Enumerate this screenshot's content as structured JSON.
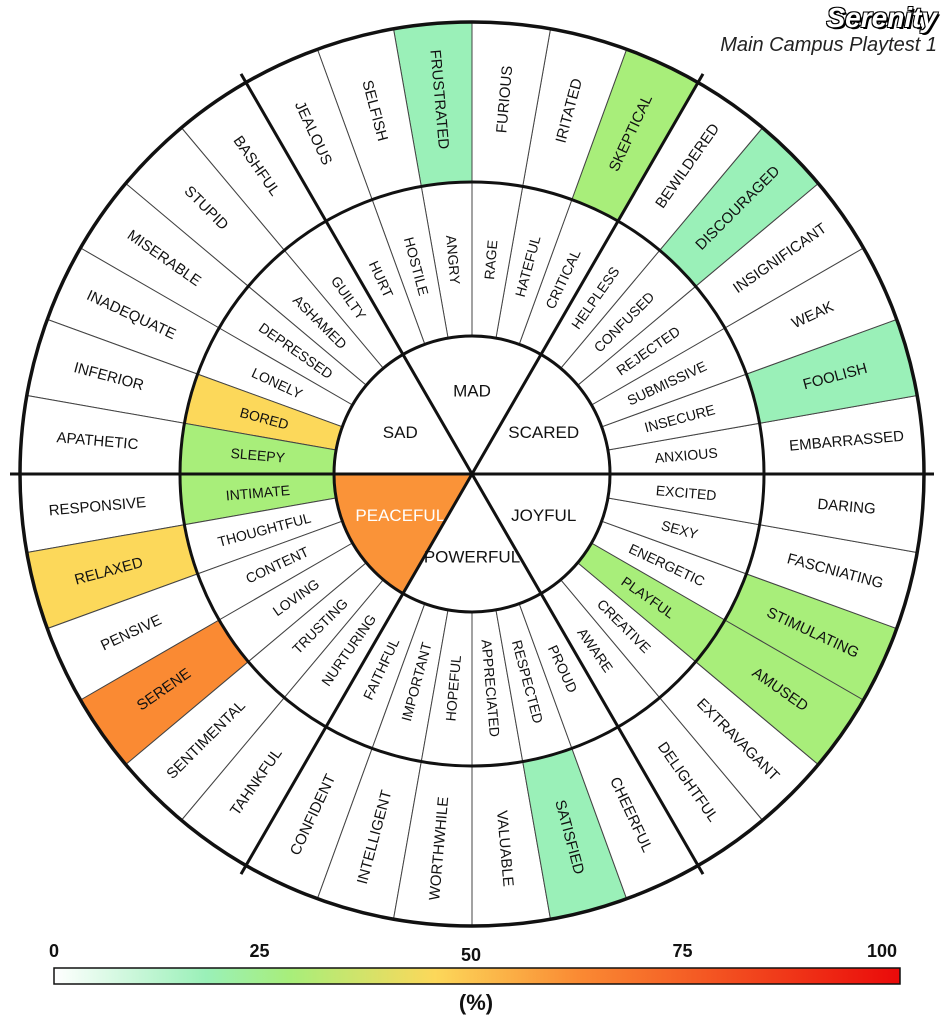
{
  "title": "Serenity",
  "subtitle": "Main Campus Playtest 1",
  "legend": {
    "ticks": [
      "0",
      "25",
      "50",
      "75",
      "100"
    ],
    "unit": "(%)",
    "colors": [
      "#ffffff",
      "#9af0b8",
      "#a8ee7a",
      "#fcd85a",
      "#fa8a33",
      "#ea0a0a"
    ]
  },
  "wheel": {
    "core": [
      {
        "label": "PEACEFUL",
        "value": 60
      },
      {
        "label": "POWERFUL",
        "value": 0
      },
      {
        "label": "JOYFUL",
        "value": 0
      },
      {
        "label": "SCARED",
        "value": 0
      },
      {
        "label": "MAD",
        "value": 0
      },
      {
        "label": "SAD",
        "value": 0
      }
    ],
    "middle": [
      {
        "label": "INTIMATE",
        "value": 28
      },
      {
        "label": "THOUGHTFUL",
        "value": 0
      },
      {
        "label": "CONTENT",
        "value": 0
      },
      {
        "label": "LOVING",
        "value": 0
      },
      {
        "label": "TRUSTING",
        "value": 0
      },
      {
        "label": "NURTURING",
        "value": 0
      },
      {
        "label": "FAITHFUL",
        "value": 0
      },
      {
        "label": "IMPORTANT",
        "value": 0
      },
      {
        "label": "HOPEFUL",
        "value": 0
      },
      {
        "label": "APPRECIATED",
        "value": 0
      },
      {
        "label": "RESPECTED",
        "value": 0
      },
      {
        "label": "PROUD",
        "value": 0
      },
      {
        "label": "AWARE",
        "value": 0
      },
      {
        "label": "CREATIVE",
        "value": 0
      },
      {
        "label": "PLAYFUL",
        "value": 28
      },
      {
        "label": "ENERGETIC",
        "value": 0
      },
      {
        "label": "SEXY",
        "value": 0
      },
      {
        "label": "EXCITED",
        "value": 0
      },
      {
        "label": "ANXIOUS",
        "value": 0
      },
      {
        "label": "INSECURE",
        "value": 0
      },
      {
        "label": "SUBMISSIVE",
        "value": 0
      },
      {
        "label": "REJECTED",
        "value": 0
      },
      {
        "label": "CONFUSED",
        "value": 0
      },
      {
        "label": "HELPLESS",
        "value": 0
      },
      {
        "label": "CRITICAL",
        "value": 0
      },
      {
        "label": "HATEFUL",
        "value": 0
      },
      {
        "label": "RAGE",
        "value": 0
      },
      {
        "label": "ANGRY",
        "value": 0
      },
      {
        "label": "HOSTILE",
        "value": 0
      },
      {
        "label": "HURT",
        "value": 0
      },
      {
        "label": "GUILTY",
        "value": 0
      },
      {
        "label": "ASHAMED",
        "value": 0
      },
      {
        "label": "DEPRESSED",
        "value": 0
      },
      {
        "label": "LONELY",
        "value": 0
      },
      {
        "label": "BORED",
        "value": 45
      },
      {
        "label": "SLEEPY",
        "value": 28
      }
    ],
    "outer": [
      {
        "label": "RESPONSIVE",
        "value": 0
      },
      {
        "label": "RELAXED",
        "value": 45
      },
      {
        "label": "PENSIVE",
        "value": 0
      },
      {
        "label": "SERENE",
        "value": 62
      },
      {
        "label": "SENTIMENTAL",
        "value": 0
      },
      {
        "label": "TAHNKFUL",
        "value": 0
      },
      {
        "label": "CONFIDENT",
        "value": 0
      },
      {
        "label": "INTELLIGENT",
        "value": 0
      },
      {
        "label": "WORTHWHILE",
        "value": 0
      },
      {
        "label": "VALUABLE",
        "value": 0
      },
      {
        "label": "SATISFIED",
        "value": 18
      },
      {
        "label": "CHEERFUL",
        "value": 0
      },
      {
        "label": "DELIGHTFUL",
        "value": 0
      },
      {
        "label": "EXTRAVAGANT",
        "value": 0
      },
      {
        "label": "AMUSED",
        "value": 28
      },
      {
        "label": "STIMULATING",
        "value": 28
      },
      {
        "label": "FASCNIATING",
        "value": 0
      },
      {
        "label": "DARING",
        "value": 0
      },
      {
        "label": "EMBARRASSED",
        "value": 0
      },
      {
        "label": "FOOLISH",
        "value": 18
      },
      {
        "label": "WEAK",
        "value": 0
      },
      {
        "label": "INSIGNIFICANT",
        "value": 0
      },
      {
        "label": "DISCOURAGED",
        "value": 18
      },
      {
        "label": "BEWILDERED",
        "value": 0
      },
      {
        "label": "SKEPTICAL",
        "value": 28
      },
      {
        "label": "IRITATED",
        "value": 0
      },
      {
        "label": "FURIOUS",
        "value": 0
      },
      {
        "label": "FRUSTRATED",
        "value": 18
      },
      {
        "label": "SELFISH",
        "value": 0
      },
      {
        "label": "JEALOUS",
        "value": 0
      },
      {
        "label": "BASHFUL",
        "value": 0
      },
      {
        "label": "STUPID",
        "value": 0
      },
      {
        "label": "MISERABLE",
        "value": 0
      },
      {
        "label": "INADEQUATE",
        "value": 0
      },
      {
        "label": "INFERIOR",
        "value": 0
      },
      {
        "label": "APATHETIC",
        "value": 0
      }
    ]
  }
}
